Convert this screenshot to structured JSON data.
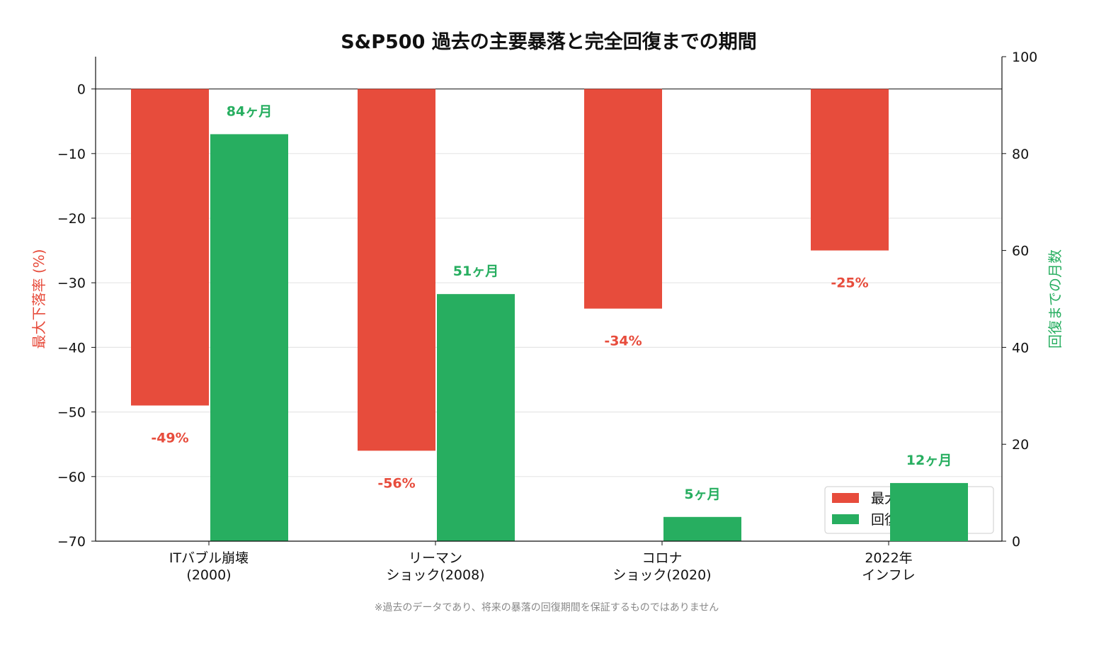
{
  "chart_data": {
    "type": "bar",
    "title": "S&P500 過去の主要暴落と完全回復までの期間",
    "categories": [
      [
        "ITバブル崩壊",
        "(2000)"
      ],
      [
        "リーマン",
        "ショック(2008)"
      ],
      [
        "コロナ",
        "ショック(2020)"
      ],
      [
        "2022年",
        "インフレ"
      ]
    ],
    "series": [
      {
        "name": "最大下落率(%)",
        "axis": "left",
        "color": "#e74c3c",
        "values": [
          -49,
          -56,
          -34,
          -25
        ],
        "labels": [
          "-49%",
          "-56%",
          "-34%",
          "-25%"
        ]
      },
      {
        "name": "回復までの月数",
        "axis": "right",
        "color": "#27ae60",
        "values": [
          84,
          51,
          5,
          12
        ],
        "labels": [
          "84ヶ月",
          "51ヶ月",
          "5ヶ月",
          "12ヶ月"
        ]
      }
    ],
    "ylabel_left": "最大下落率 (%)",
    "ylabel_right": "回復までの月数",
    "ylim_left": [
      -70,
      5
    ],
    "ylim_right": [
      0,
      100
    ],
    "yticks_left": [
      0,
      -10,
      -20,
      -30,
      -40,
      -50,
      -60,
      -70
    ],
    "yticks_right": [
      0,
      20,
      40,
      60,
      80,
      100
    ],
    "grid": true,
    "legend": "lower-right",
    "footnote": "※過去のデータであり、将来の暴落の回復期間を保証するものではありません"
  }
}
